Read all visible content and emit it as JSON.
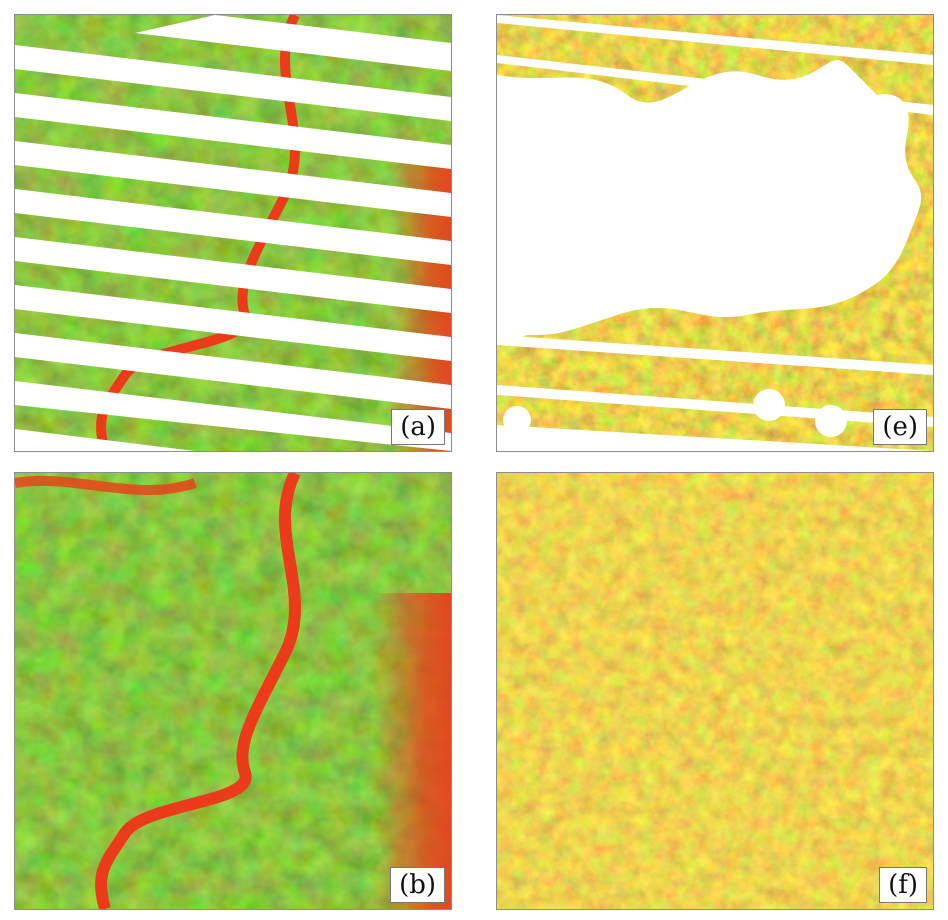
{
  "panels": {
    "a": {
      "label": "(a)"
    },
    "e": {
      "label": "(e)"
    },
    "b": {
      "label": "(b)"
    },
    "f": {
      "label": "(f)"
    }
  },
  "colors": {
    "dark_green": "#2f6b08",
    "green": "#5f9a10",
    "yellow_green": "#b9d21a",
    "yellow": "#f2ee22",
    "orange": "#f39a1e",
    "red": "#ec3b1a",
    "gap_white": "#ffffff"
  }
}
